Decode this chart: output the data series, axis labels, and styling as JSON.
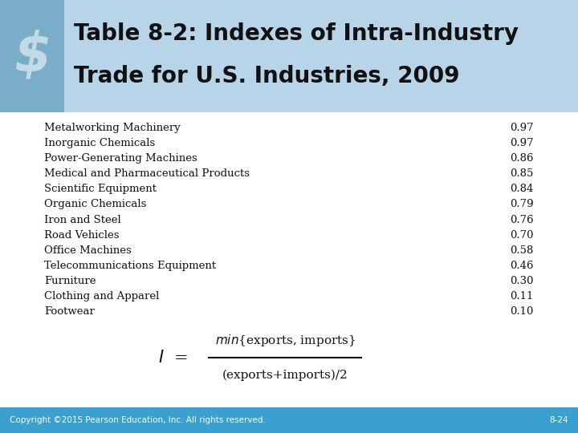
{
  "title_line1": "Table 8-2: Indexes of Intra-Industry",
  "title_line2": "Trade for U.S. Industries, 2009",
  "industries": [
    "Metalworking Machinery",
    "Inorganic Chemicals",
    "Power-Generating Machines",
    "Medical and Pharmaceutical Products",
    "Scientific Equipment",
    "Organic Chemicals",
    "Iron and Steel",
    "Road Vehicles",
    "Office Machines",
    "Telecommunications Equipment",
    "Furniture",
    "Clothing and Apparel",
    "Footwear"
  ],
  "values": [
    0.97,
    0.97,
    0.86,
    0.85,
    0.84,
    0.79,
    0.76,
    0.7,
    0.58,
    0.46,
    0.3,
    0.11,
    0.1
  ],
  "bg_color": "#ffffff",
  "header_bg": "#b8d4e8",
  "icon_bg": "#7aaec8",
  "body_text_color": "#111111",
  "footer_bg": "#3aa0d0",
  "footer_text_color": "#ffffff",
  "footer_left": "Copyright ©2015 Pearson Education, Inc. All rights reserved.",
  "footer_right": "8-24",
  "title_color": "#111111"
}
